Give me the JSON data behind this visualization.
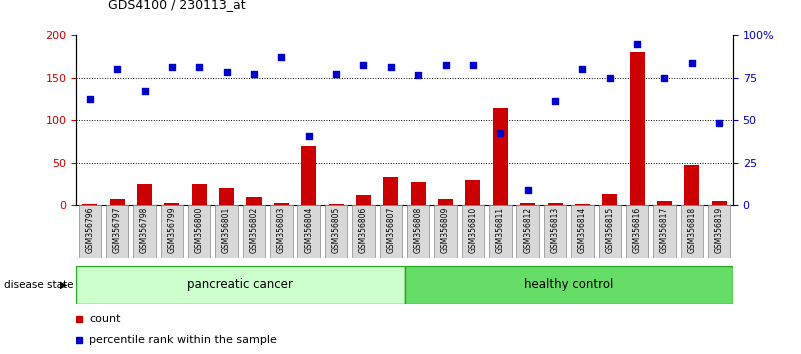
{
  "title": "GDS4100 / 230113_at",
  "samples": [
    "GSM356796",
    "GSM356797",
    "GSM356798",
    "GSM356799",
    "GSM356800",
    "GSM356801",
    "GSM356802",
    "GSM356803",
    "GSM356804",
    "GSM356805",
    "GSM356806",
    "GSM356807",
    "GSM356808",
    "GSM356809",
    "GSM356810",
    "GSM356811",
    "GSM356812",
    "GSM356813",
    "GSM356814",
    "GSM356815",
    "GSM356816",
    "GSM356817",
    "GSM356818",
    "GSM356819"
  ],
  "count_values": [
    2,
    7,
    25,
    3,
    25,
    20,
    10,
    3,
    70,
    1,
    12,
    33,
    27,
    8,
    30,
    115,
    3,
    3,
    2,
    13,
    180,
    5,
    47,
    5
  ],
  "percentile_values": [
    125,
    160,
    135,
    163,
    163,
    157,
    155,
    175,
    82,
    155,
    165,
    163,
    153,
    165,
    165,
    85,
    18,
    123,
    160,
    150,
    190,
    150,
    168,
    97
  ],
  "group1_label": "pancreatic cancer",
  "group1_count": 12,
  "group2_label": "healthy control",
  "group1_color": "#ccffcc",
  "group2_color": "#66dd66",
  "bar_color": "#cc0000",
  "scatter_color": "#0000cc",
  "ylim": [
    0,
    200
  ],
  "yticks_left": [
    0,
    50,
    100,
    150,
    200
  ],
  "ytick_labels_left": [
    "0",
    "50",
    "100",
    "150",
    "200"
  ],
  "yticks_right": [
    0,
    50,
    100,
    150,
    200
  ],
  "ytick_labels_right": [
    "0",
    "25",
    "50",
    "75",
    "100%"
  ],
  "hlines": [
    50,
    100,
    150
  ],
  "disease_state_label": "disease state",
  "legend_count": "count",
  "legend_percentile": "percentile rank within the sample",
  "bg_color": "#ffffff",
  "plot_bg": "#ffffff"
}
